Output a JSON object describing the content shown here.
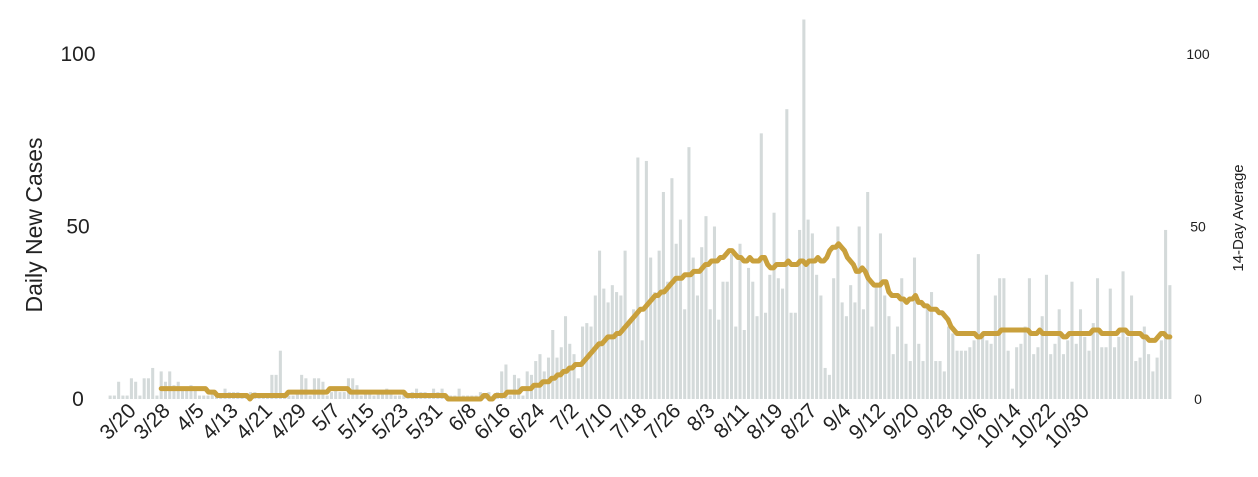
{
  "chart_data": {
    "type": "bar",
    "title": "",
    "ylabel": "Daily New Cases",
    "y2label": "14-Day Average",
    "ylim": [
      0,
      100
    ],
    "y2lim": [
      0,
      100
    ],
    "yticks": [
      0,
      50,
      100
    ],
    "y2ticks": [
      0,
      50,
      100
    ],
    "xtick_labels": [
      "3/20",
      "3/28",
      "4/5",
      "4/13",
      "4/21",
      "4/29",
      "5/7",
      "5/15",
      "5/23",
      "5/31",
      "6/8",
      "6/16",
      "6/24",
      "7/2",
      "7/10",
      "7/18",
      "7/26",
      "8/3",
      "8/11",
      "8/19",
      "8/27",
      "9/4",
      "9/12",
      "9/20",
      "9/28",
      "10/6",
      "10/14",
      "10/22",
      "10/30"
    ],
    "grid": false,
    "colors": {
      "bars": "#d4dada",
      "average_line": "#c9a03c",
      "text": "#222222"
    },
    "series": [
      {
        "kind": "bar",
        "axis": "left",
        "start_date": "3/16",
        "values": [
          1,
          1,
          5,
          1,
          1,
          6,
          5,
          1,
          6,
          6,
          9,
          1,
          8,
          5,
          8,
          4,
          5,
          3,
          3,
          4,
          3,
          1,
          1,
          1,
          2,
          1,
          1,
          3,
          2,
          2,
          2,
          1,
          1,
          2,
          2,
          1,
          1,
          1,
          7,
          7,
          14,
          1,
          1,
          1,
          2,
          7,
          6,
          1,
          6,
          6,
          5,
          1,
          2,
          3,
          2,
          2,
          6,
          6,
          4,
          1,
          2,
          2,
          1,
          2,
          2,
          3,
          2,
          1,
          1,
          2,
          1,
          2,
          3,
          2,
          2,
          1,
          3,
          2,
          3,
          1,
          1,
          1,
          3,
          1,
          1,
          1,
          1,
          2,
          1,
          2,
          1,
          2,
          8,
          10,
          1,
          7,
          6,
          1,
          8,
          7,
          11,
          13,
          8,
          12,
          20,
          12,
          15,
          24,
          16,
          13,
          6,
          21,
          22,
          21,
          30,
          43,
          32,
          28,
          33,
          31,
          30,
          43,
          23,
          26,
          70,
          17,
          69,
          41,
          31,
          43,
          60,
          34,
          64,
          45,
          52,
          26,
          73,
          41,
          30,
          44,
          53,
          26,
          50,
          23,
          34,
          34,
          42,
          21,
          45,
          20,
          38,
          34,
          24,
          77,
          25,
          36,
          54,
          35,
          32,
          84,
          25,
          25,
          49,
          110,
          52,
          48,
          36,
          30,
          9,
          7,
          35,
          50,
          28,
          24,
          33,
          28,
          50,
          26,
          60,
          21,
          33,
          48,
          30,
          24,
          13,
          21,
          35,
          16,
          11,
          41,
          16,
          11,
          27,
          31,
          11,
          11,
          8,
          21,
          19,
          14,
          14,
          14,
          15,
          17,
          42,
          19,
          17,
          16,
          30,
          35,
          35,
          14,
          3,
          15,
          16,
          21,
          35,
          13,
          15,
          24,
          36,
          13,
          16,
          26,
          13,
          17,
          34,
          16,
          26,
          18,
          14,
          22,
          35,
          15,
          15,
          32,
          15,
          18,
          37,
          18,
          30,
          11,
          12,
          21,
          13,
          8,
          12,
          17,
          49,
          33
        ]
      },
      {
        "kind": "line",
        "axis": "right",
        "name": "14-Day Average",
        "start_date": "3/28",
        "values": [
          3,
          3,
          3,
          3,
          3,
          3,
          3,
          3,
          3,
          3,
          3,
          3,
          3,
          3,
          3,
          3,
          2,
          2,
          2,
          1,
          1,
          1,
          1,
          1,
          1,
          1,
          1,
          1,
          1,
          1,
          0,
          1,
          1,
          1,
          1,
          1,
          1,
          1,
          1,
          1,
          1,
          1,
          1,
          2,
          2,
          2,
          2,
          2,
          2,
          2,
          2,
          2,
          2,
          2,
          2,
          2,
          2,
          3,
          3,
          3,
          3,
          3,
          3,
          3,
          2,
          2,
          2,
          2,
          2,
          2,
          2,
          2,
          2,
          2,
          2,
          2,
          2,
          2,
          2,
          2,
          2,
          2,
          2,
          1,
          1,
          1,
          1,
          1,
          1,
          1,
          1,
          1,
          1,
          1,
          1,
          1,
          1,
          0,
          0,
          0,
          0,
          0,
          0,
          0,
          0,
          0,
          0,
          0,
          0,
          1,
          1,
          0,
          0,
          1,
          1,
          1,
          1,
          2,
          2,
          2,
          2,
          2,
          3,
          3,
          3,
          3,
          4,
          4,
          4,
          5,
          5,
          5,
          6,
          6,
          7,
          7,
          8,
          8,
          9,
          9,
          10,
          10,
          10,
          11,
          12,
          13,
          14,
          15,
          16,
          16,
          17,
          18,
          18,
          18,
          19,
          19,
          20,
          21,
          22,
          23,
          24,
          25,
          26,
          26,
          27,
          28,
          29,
          30,
          30,
          31,
          31,
          32,
          33,
          34,
          35,
          35,
          35,
          36,
          36,
          36,
          37,
          37,
          37,
          38,
          39,
          39,
          40,
          40,
          40,
          41,
          41,
          42,
          43,
          43,
          42,
          41,
          41,
          40,
          40,
          41,
          40,
          40,
          40,
          41,
          41,
          39,
          38,
          38,
          39,
          39,
          39,
          39,
          40,
          39,
          39,
          39,
          40,
          40,
          39,
          40,
          40,
          40,
          41,
          40,
          40,
          41,
          43,
          44,
          44,
          45,
          44,
          43,
          41,
          40,
          39,
          37,
          37,
          38,
          37,
          35,
          34,
          33,
          33,
          33,
          34,
          34,
          31,
          30,
          30,
          30,
          29,
          29,
          28,
          29,
          29,
          30,
          28,
          28,
          27,
          27,
          26,
          26,
          26,
          25,
          25,
          24,
          23,
          21,
          20,
          19,
          19,
          19,
          19,
          19,
          19,
          19,
          18,
          18,
          19,
          19,
          19,
          19,
          19,
          19,
          20,
          20,
          20,
          20,
          20,
          20,
          20,
          20,
          20,
          20,
          19,
          19,
          19,
          20,
          19,
          19,
          19,
          19,
          19,
          19,
          19,
          18,
          18,
          19,
          19,
          19,
          19,
          19,
          19,
          19,
          19,
          20,
          20,
          20,
          19,
          19,
          19,
          19,
          19,
          19,
          20,
          20,
          20,
          19,
          19,
          19,
          19,
          19,
          18,
          18,
          17,
          17,
          17,
          18,
          19,
          19,
          18,
          18
        ]
      }
    ]
  }
}
